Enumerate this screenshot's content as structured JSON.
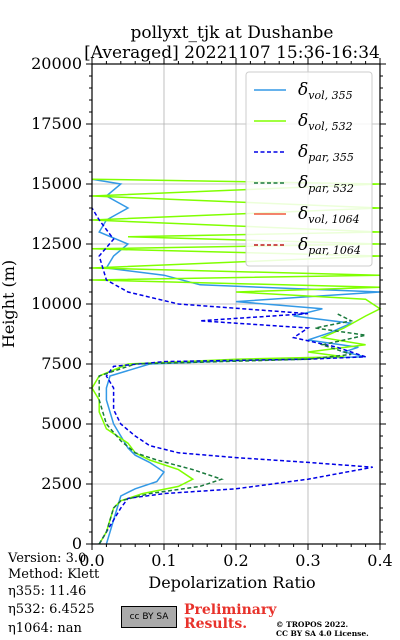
{
  "header": {
    "title_line1": "pollyxt_tjk at Dushanbe",
    "title_line2": "[Averaged] 20221107 15:36-16:34"
  },
  "footer": {
    "version": "Version: 3.0",
    "method": "Method: Klett",
    "eta355": "η355:  11.46",
    "eta532": "η532: 6.4525",
    "eta1064": "η1064:    nan",
    "preliminary_line1": "Preliminary",
    "preliminary_line2": "Results.",
    "copyright_line1": "© TROPOS 2022.",
    "copyright_line2": "CC BY SA 4.0 License.",
    "cc_logo_text": "cc BY SA"
  },
  "chart_data": {
    "type": "line",
    "xlabel": "Depolarization Ratio",
    "ylabel": "Height (m)",
    "xlim": [
      0.0,
      0.4
    ],
    "ylim": [
      0,
      20000
    ],
    "xticks": [
      0.0,
      0.1,
      0.2,
      0.3,
      0.4
    ],
    "xtick_labels": [
      "0.0",
      "0.1",
      "0.2",
      "0.3",
      "0.4"
    ],
    "yticks": [
      0,
      2500,
      5000,
      7500,
      10000,
      12500,
      15000,
      17500,
      20000
    ],
    "ytick_labels": [
      "0",
      "2500",
      "5000",
      "7500",
      "10000",
      "12500",
      "15000",
      "17500",
      "20000"
    ],
    "grid": true,
    "legend_position": "top-right",
    "series": [
      {
        "name": "δvol,355",
        "label_main": "δ",
        "label_sub": "vol, 355",
        "color": "#3399e6",
        "dash": "solid",
        "points": [
          [
            0.02,
            0
          ],
          [
            0.025,
            500
          ],
          [
            0.03,
            1000
          ],
          [
            0.035,
            1500
          ],
          [
            0.04,
            2000
          ],
          [
            0.06,
            2300
          ],
          [
            0.09,
            2600
          ],
          [
            0.1,
            3000
          ],
          [
            0.08,
            3400
          ],
          [
            0.06,
            3700
          ],
          [
            0.05,
            4000
          ],
          [
            0.04,
            4500
          ],
          [
            0.03,
            5000
          ],
          [
            0.025,
            5500
          ],
          [
            0.02,
            6000
          ],
          [
            0.02,
            6500
          ],
          [
            0.025,
            7000
          ],
          [
            0.08,
            7500
          ],
          [
            0.25,
            7700
          ],
          [
            0.38,
            7800
          ],
          [
            0.35,
            8000
          ],
          [
            0.37,
            8200
          ],
          [
            0.3,
            8500
          ],
          [
            0.33,
            8800
          ],
          [
            0.36,
            9200
          ],
          [
            0.28,
            9500
          ],
          [
            0.32,
            9800
          ],
          [
            0.2,
            10100
          ],
          [
            0.3,
            10300
          ],
          [
            0.4,
            10500
          ],
          [
            0.15,
            10800
          ],
          [
            0.1,
            11200
          ],
          [
            0.02,
            11500
          ],
          [
            0.03,
            12000
          ],
          [
            0.05,
            12500
          ],
          [
            0.01,
            13000
          ],
          [
            0.02,
            13500
          ],
          [
            0.05,
            14000
          ],
          [
            0.02,
            14500
          ],
          [
            0.04,
            15000
          ],
          [
            0.0,
            15200
          ]
        ]
      },
      {
        "name": "δvol,532",
        "label_main": "δ",
        "label_sub": "vol, 532",
        "color": "#80ff00",
        "dash": "solid",
        "points": [
          [
            0.01,
            0
          ],
          [
            0.02,
            500
          ],
          [
            0.025,
            1000
          ],
          [
            0.03,
            1500
          ],
          [
            0.04,
            1800
          ],
          [
            0.07,
            2100
          ],
          [
            0.12,
            2400
          ],
          [
            0.14,
            2700
          ],
          [
            0.12,
            3100
          ],
          [
            0.08,
            3500
          ],
          [
            0.06,
            3800
          ],
          [
            0.05,
            4200
          ],
          [
            0.02,
            4800
          ],
          [
            0.01,
            5500
          ],
          [
            0.01,
            6000
          ],
          [
            0.0,
            6500
          ],
          [
            0.01,
            7000
          ],
          [
            0.05,
            7500
          ],
          [
            0.2,
            7700
          ],
          [
            0.35,
            7800
          ],
          [
            0.3,
            8000
          ],
          [
            0.38,
            8300
          ],
          [
            0.32,
            8600
          ],
          [
            0.35,
            9000
          ],
          [
            0.38,
            9500
          ],
          [
            0.4,
            9800
          ],
          [
            0.38,
            10200
          ],
          [
            0.2,
            10500
          ],
          [
            0.4,
            10700
          ],
          [
            0.0,
            11000
          ],
          [
            0.4,
            11200
          ],
          [
            0.0,
            11500
          ],
          [
            0.4,
            12000
          ],
          [
            0.0,
            12300
          ],
          [
            0.4,
            12500
          ],
          [
            0.05,
            12800
          ],
          [
            0.4,
            13000
          ],
          [
            0.0,
            13500
          ],
          [
            0.4,
            14000
          ],
          [
            0.0,
            14500
          ],
          [
            0.4,
            15000
          ],
          [
            0.0,
            15200
          ]
        ]
      },
      {
        "name": "δpar,355",
        "label_main": "δ",
        "label_sub": "par, 355",
        "color": "#0000e6",
        "dash": "dashed",
        "points": [
          [
            0.01,
            0
          ],
          [
            0.02,
            500
          ],
          [
            0.03,
            1000
          ],
          [
            0.04,
            1500
          ],
          [
            0.05,
            1900
          ],
          [
            0.1,
            2100
          ],
          [
            0.2,
            2300
          ],
          [
            0.3,
            2700
          ],
          [
            0.39,
            3200
          ],
          [
            0.3,
            3400
          ],
          [
            0.2,
            3600
          ],
          [
            0.12,
            3800
          ],
          [
            0.08,
            4100
          ],
          [
            0.06,
            4500
          ],
          [
            0.04,
            5000
          ],
          [
            0.03,
            5600
          ],
          [
            0.03,
            6500
          ],
          [
            0.02,
            7000
          ],
          [
            0.03,
            7400
          ],
          [
            0.1,
            7600
          ],
          [
            0.3,
            7700
          ],
          [
            0.38,
            7800
          ],
          [
            0.34,
            8200
          ],
          [
            0.28,
            8600
          ],
          [
            0.3,
            9000
          ],
          [
            0.15,
            9300
          ],
          [
            0.3,
            9600
          ],
          [
            0.12,
            10000
          ],
          [
            0.05,
            10500
          ],
          [
            0.02,
            11000
          ],
          [
            0.01,
            12000
          ],
          [
            0.03,
            12700
          ],
          [
            0.01,
            13500
          ],
          [
            0.0,
            14000
          ]
        ]
      },
      {
        "name": "δpar,532",
        "label_main": "δ",
        "label_sub": "par, 532",
        "color": "#1a7a3c",
        "dash": "dashed",
        "points": [
          [
            0.01,
            0
          ],
          [
            0.02,
            500
          ],
          [
            0.025,
            1000
          ],
          [
            0.03,
            1500
          ],
          [
            0.04,
            1800
          ],
          [
            0.08,
            2100
          ],
          [
            0.15,
            2400
          ],
          [
            0.18,
            2700
          ],
          [
            0.14,
            3100
          ],
          [
            0.09,
            3500
          ],
          [
            0.06,
            3800
          ],
          [
            0.04,
            4300
          ],
          [
            0.02,
            5000
          ],
          [
            0.01,
            6000
          ],
          [
            0.01,
            7000
          ],
          [
            0.06,
            7500
          ],
          [
            0.3,
            7700
          ],
          [
            0.36,
            7900
          ],
          [
            0.32,
            8300
          ],
          [
            0.38,
            8700
          ],
          [
            0.31,
            9000
          ],
          [
            0.36,
            9300
          ],
          [
            0.34,
            9600
          ]
        ]
      },
      {
        "name": "δvol,1064",
        "label_main": "δ",
        "label_sub": "vol, 1064",
        "color": "#f05a3c",
        "dash": "solid",
        "points": []
      },
      {
        "name": "δpar,1064",
        "label_main": "δ",
        "label_sub": "par, 1064",
        "color": "#c01a1a",
        "dash": "dashed",
        "points": []
      }
    ]
  }
}
